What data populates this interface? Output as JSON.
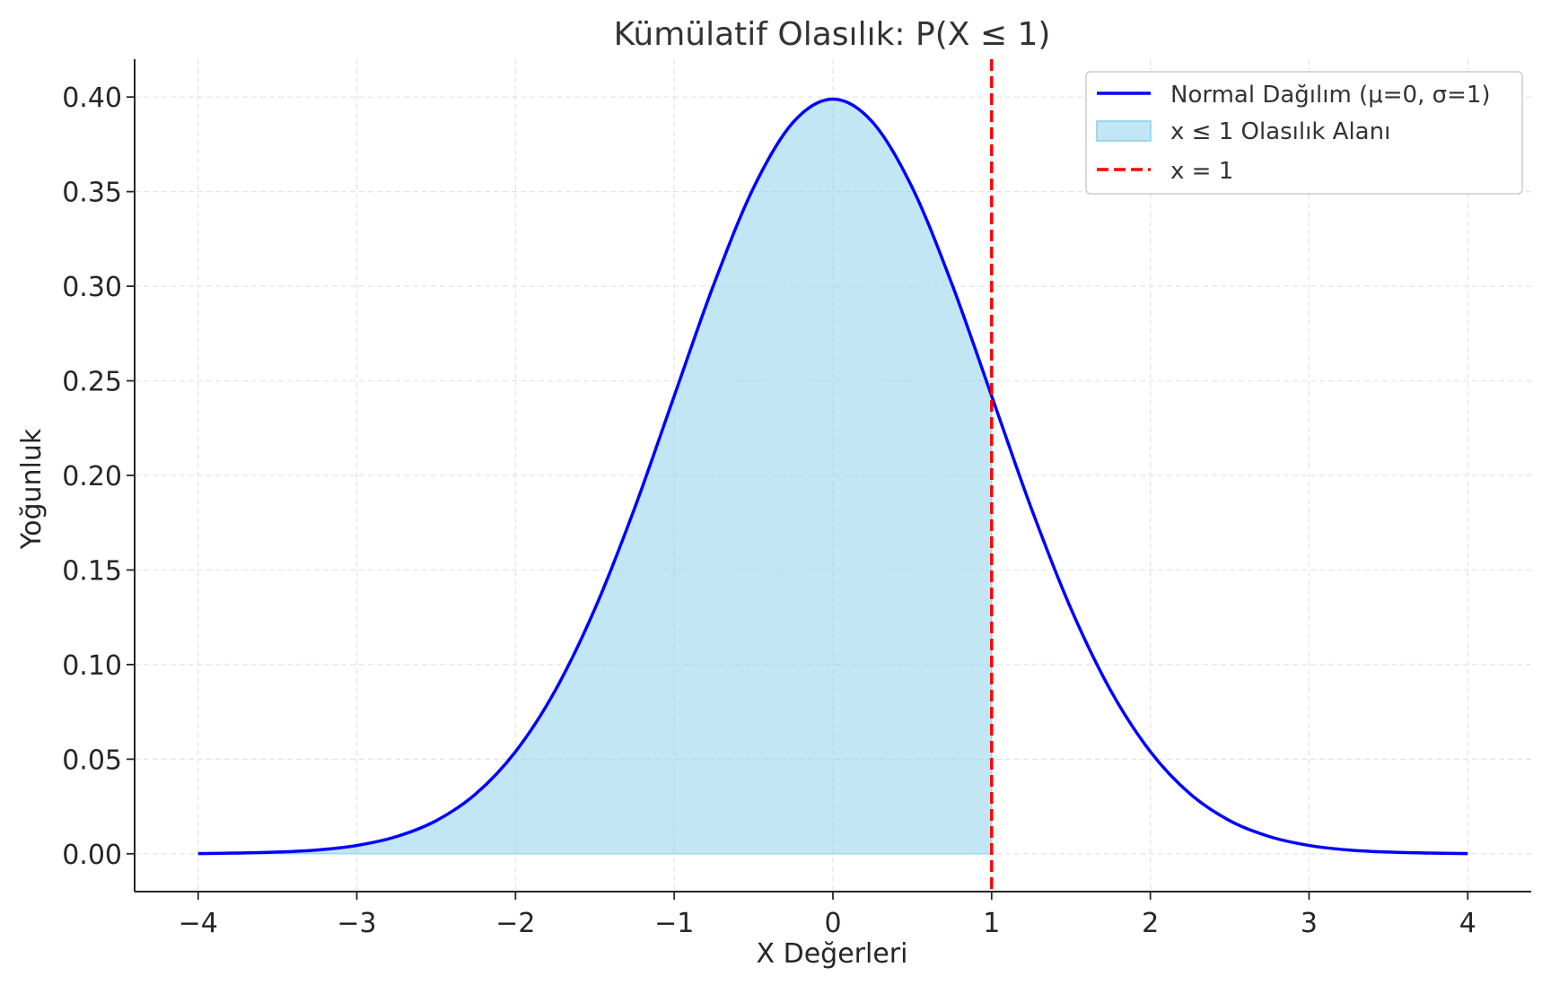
{
  "chart_data": {
    "type": "area",
    "title": "Kümülatif Olasılık: P(X ≤ 1)",
    "xlabel": "X Değerleri",
    "ylabel": "Yoğunluk",
    "xlim": [
      -4.4,
      4.4
    ],
    "ylim": [
      -0.02,
      0.42
    ],
    "xticks": [
      -4,
      -3,
      -2,
      -1,
      0,
      1,
      2,
      3,
      4
    ],
    "xtick_labels": [
      "−4",
      "−3",
      "−2",
      "−1",
      "0",
      "1",
      "2",
      "3",
      "4"
    ],
    "yticks": [
      0.0,
      0.05,
      0.1,
      0.15,
      0.2,
      0.25,
      0.3,
      0.35,
      0.4
    ],
    "ytick_labels": [
      "0.00",
      "0.05",
      "0.10",
      "0.15",
      "0.20",
      "0.25",
      "0.30",
      "0.35",
      "0.40"
    ],
    "grid": true,
    "legend_position": "top-right",
    "series": [
      {
        "name": "Normal Dağılım (μ=0, σ=1)",
        "kind": "line",
        "color": "#0000ff",
        "x": [
          -4.0,
          -3.75,
          -3.5,
          -3.25,
          -3.0,
          -2.75,
          -2.5,
          -2.25,
          -2.0,
          -1.75,
          -1.5,
          -1.25,
          -1.0,
          -0.75,
          -0.5,
          -0.25,
          0.0,
          0.25,
          0.5,
          0.75,
          1.0,
          1.25,
          1.5,
          1.75,
          2.0,
          2.25,
          2.5,
          2.75,
          3.0,
          3.25,
          3.5,
          3.75,
          4.0
        ],
        "y": [
          0.0001,
          0.0004,
          0.0009,
          0.002,
          0.0044,
          0.0091,
          0.0175,
          0.0317,
          0.054,
          0.0863,
          0.1295,
          0.1826,
          0.242,
          0.3011,
          0.3521,
          0.3867,
          0.3989,
          0.3867,
          0.3521,
          0.3011,
          0.242,
          0.1826,
          0.1295,
          0.0863,
          0.054,
          0.0317,
          0.0175,
          0.0091,
          0.0044,
          0.002,
          0.0009,
          0.0004,
          0.0001
        ]
      },
      {
        "name": "x ≤ 1 Olasılık Alanı",
        "kind": "fill",
        "color": "#87ceeb",
        "x_range": [
          -4,
          1
        ]
      },
      {
        "name": "x = 1",
        "kind": "vline",
        "color": "#ff0000",
        "x": 1
      }
    ]
  }
}
